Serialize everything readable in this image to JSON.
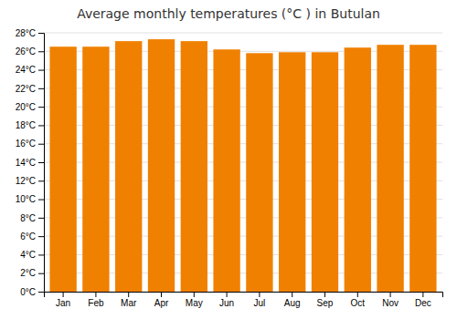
{
  "chart_data": {
    "type": "bar",
    "title": "Average monthly temperatures (°C ) in Butulan",
    "categories": [
      "Jan",
      "Feb",
      "Mar",
      "Apr",
      "May",
      "Jun",
      "Jul",
      "Aug",
      "Sep",
      "Oct",
      "Nov",
      "Dec"
    ],
    "values": [
      26.5,
      26.5,
      27.1,
      27.3,
      27.1,
      26.2,
      25.8,
      25.9,
      25.9,
      26.4,
      26.7,
      26.7
    ],
    "color": "#F08000",
    "ylim": [
      0,
      28
    ],
    "yticks": [
      {
        "value": 0,
        "label": "0°C"
      },
      {
        "value": 2,
        "label": "2°C"
      },
      {
        "value": 4,
        "label": "4°C"
      },
      {
        "value": 6,
        "label": "6°C"
      },
      {
        "value": 8,
        "label": "8°C"
      },
      {
        "value": 10,
        "label": "10°C"
      },
      {
        "value": 12,
        "label": "12°C"
      },
      {
        "value": 14,
        "label": "14°C"
      },
      {
        "value": 16,
        "label": "16°C"
      },
      {
        "value": 18,
        "label": "18°C"
      },
      {
        "value": 20,
        "label": "20°C"
      },
      {
        "value": 22,
        "label": "22°C"
      },
      {
        "value": 24,
        "label": "24°C"
      },
      {
        "value": 26,
        "label": "26°C"
      },
      {
        "value": 28,
        "label": "28°C"
      }
    ],
    "grid": true
  }
}
